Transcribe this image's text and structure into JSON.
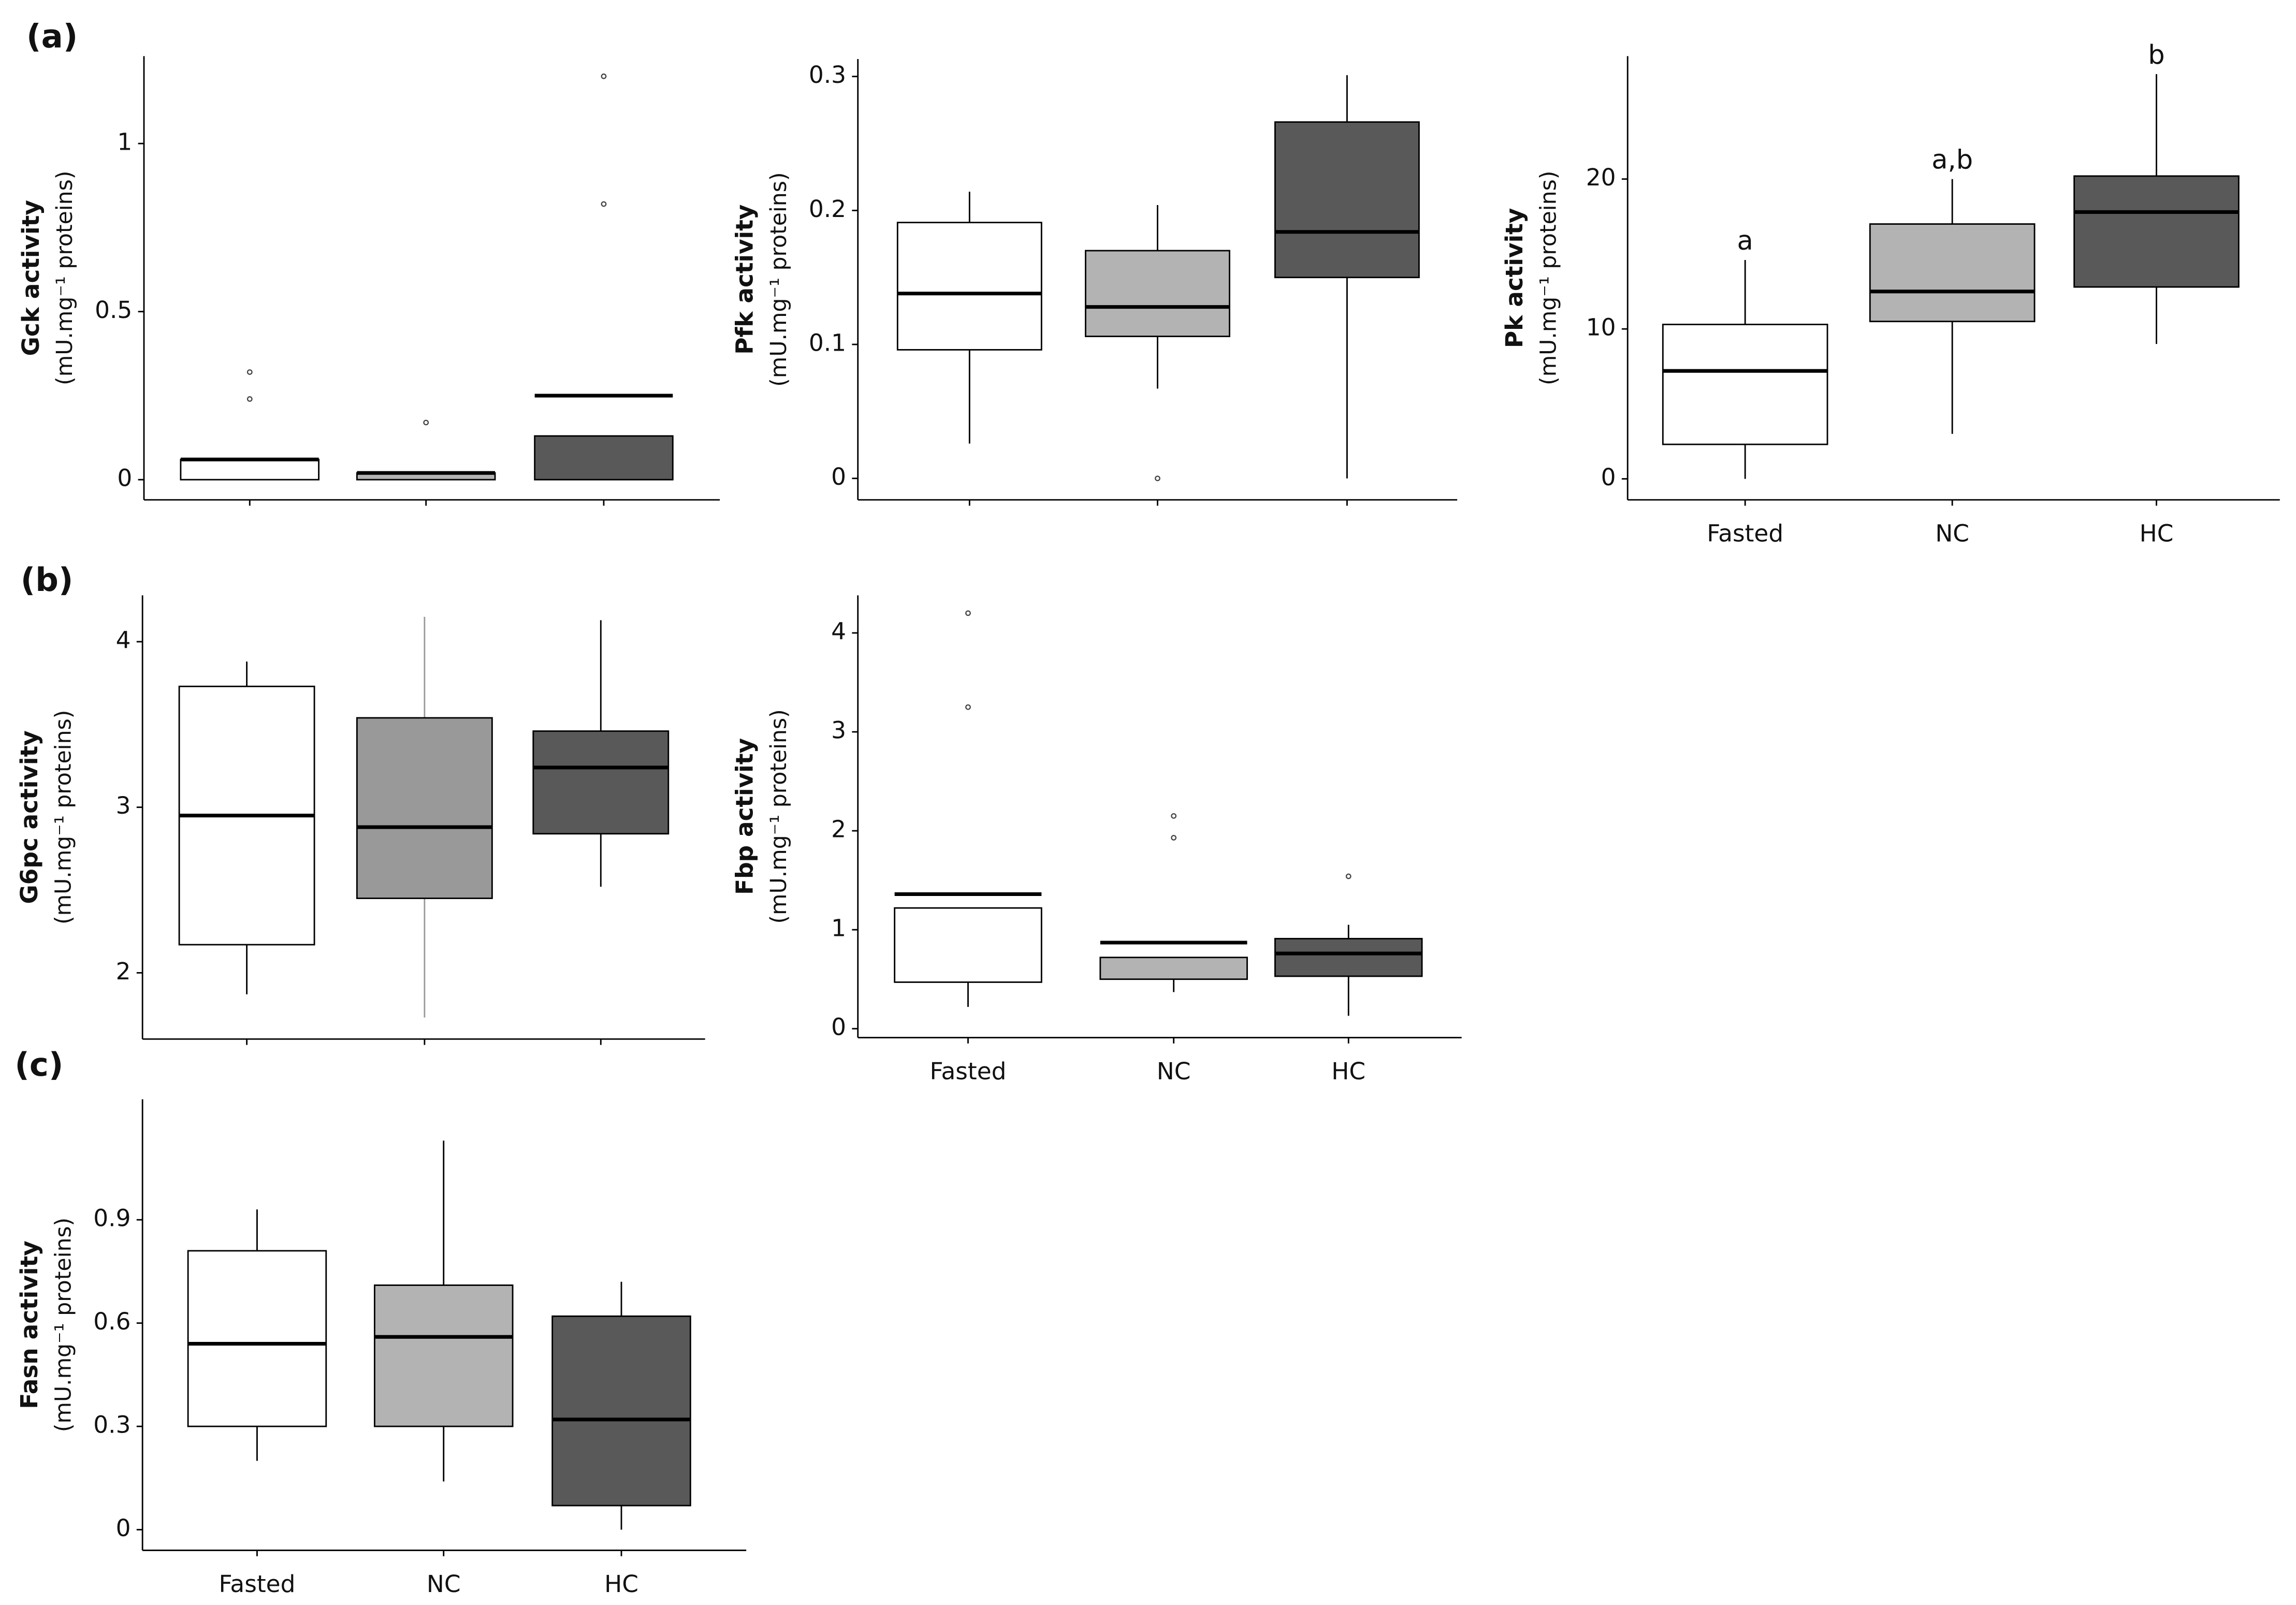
{
  "panels": [
    "(a)",
    "(b)",
    "(c)"
  ],
  "chart_data": [
    {
      "type": "box",
      "ylabel": "Gck activity",
      "yunit": "(mU.mg⁻¹ proteins)",
      "categories": [
        null,
        null,
        null
      ],
      "colors": [
        "#ffffff",
        "#b3b3b3",
        "#595959"
      ],
      "ylim": [
        -0.06,
        1.26
      ],
      "yticks": [
        0,
        0.5,
        1
      ],
      "min": [
        0,
        0,
        0
      ],
      "q1": [
        0,
        0,
        0
      ],
      "median": [
        0.06,
        0.02,
        0.25
      ],
      "q3": [
        0.06,
        0.02,
        0.13
      ],
      "max": [
        0.06,
        0.02,
        0.13
      ],
      "outliers": [
        [
          0.32,
          0.24
        ],
        [
          0.17
        ],
        [
          1.2,
          0.82
        ]
      ]
    },
    {
      "type": "box",
      "ylabel": "Pfk activity",
      "yunit": "(mU.mg⁻¹ proteins)",
      "categories": [
        null,
        null,
        null
      ],
      "colors": [
        "#ffffff",
        "#b3b3b3",
        "#595959"
      ],
      "ylim": [
        -0.016,
        0.313
      ],
      "yticks": [
        0,
        0.1,
        0.2,
        0.3
      ],
      "min": [
        0.026,
        0.067,
        0
      ],
      "q1": [
        0.096,
        0.106,
        0.15
      ],
      "median": [
        0.138,
        0.128,
        0.184
      ],
      "q3": [
        0.191,
        0.17,
        0.266
      ],
      "max": [
        0.214,
        0.204,
        0.301
      ],
      "outliers": [
        [],
        [
          0
        ],
        []
      ]
    },
    {
      "type": "box",
      "ylabel": "Pk activity",
      "yunit": "(mU.mg⁻¹ proteins)",
      "categories": [
        "Fasted",
        "NC",
        "HC"
      ],
      "colors": [
        "#ffffff",
        "#b3b3b3",
        "#595959"
      ],
      "ylim": [
        -1.4,
        28.2
      ],
      "yticks": [
        0,
        10,
        20
      ],
      "min": [
        0,
        3,
        9
      ],
      "q1": [
        2.3,
        10.5,
        12.8
      ],
      "median": [
        7.2,
        12.5,
        17.8
      ],
      "q3": [
        10.3,
        17,
        20.2
      ],
      "max": [
        14.6,
        20,
        27
      ],
      "outliers": [
        [],
        [],
        []
      ],
      "annotations": [
        "a",
        "a,b",
        "b"
      ]
    },
    {
      "type": "box",
      "ylabel": "G6pc activity",
      "yunit": "(mU.mg⁻¹ proteins)",
      "categories": [
        null,
        null,
        null
      ],
      "colors": [
        "#ffffff",
        "#999999",
        "#595959"
      ],
      "ylim": [
        1.6,
        4.28
      ],
      "yticks": [
        2,
        3,
        4
      ],
      "min": [
        1.87,
        1.73,
        2.52
      ],
      "q1": [
        2.17,
        2.45,
        2.84
      ],
      "median": [
        2.95,
        2.88,
        3.24
      ],
      "q3": [
        3.73,
        3.54,
        3.46
      ],
      "max": [
        3.88,
        4.15,
        4.13
      ],
      "outliers": [
        [],
        [],
        []
      ]
    },
    {
      "type": "box",
      "ylabel": "Fbp activity",
      "yunit": "(mU.mg⁻¹ proteins)",
      "categories": [
        "Fasted",
        "NC",
        "HC"
      ],
      "colors": [
        "#ffffff",
        "#b3b3b3",
        "#595959"
      ],
      "ylim": [
        -0.09,
        4.38
      ],
      "yticks": [
        0,
        1,
        2,
        3,
        4
      ],
      "min": [
        0.22,
        0.37,
        0.13
      ],
      "q1": [
        0.47,
        0.5,
        0.53
      ],
      "median": [
        1.36,
        0.87,
        0.76
      ],
      "q3": [
        1.22,
        0.72,
        0.91
      ],
      "max": [
        1.22,
        0.72,
        1.05
      ],
      "outliers": [
        [
          4.2,
          3.25
        ],
        [
          2.15,
          1.93
        ],
        [
          1.54
        ]
      ]
    },
    {
      "type": "box",
      "ylabel": "Fasn activity",
      "yunit": "(mU.mg⁻¹ proteins)",
      "categories": [
        "Fasted",
        "NC",
        "HC"
      ],
      "colors": [
        "#ffffff",
        "#b3b3b3",
        "#595959"
      ],
      "ylim": [
        -0.06,
        1.25
      ],
      "yticks": [
        0,
        0.3,
        0.6,
        0.9
      ],
      "min": [
        0.2,
        0.14,
        0
      ],
      "q1": [
        0.3,
        0.3,
        0.07
      ],
      "median": [
        0.54,
        0.56,
        0.32
      ],
      "q3": [
        0.81,
        0.71,
        0.62
      ],
      "max": [
        0.93,
        1.13,
        0.72
      ],
      "outliers": [
        [],
        [],
        []
      ]
    }
  ]
}
